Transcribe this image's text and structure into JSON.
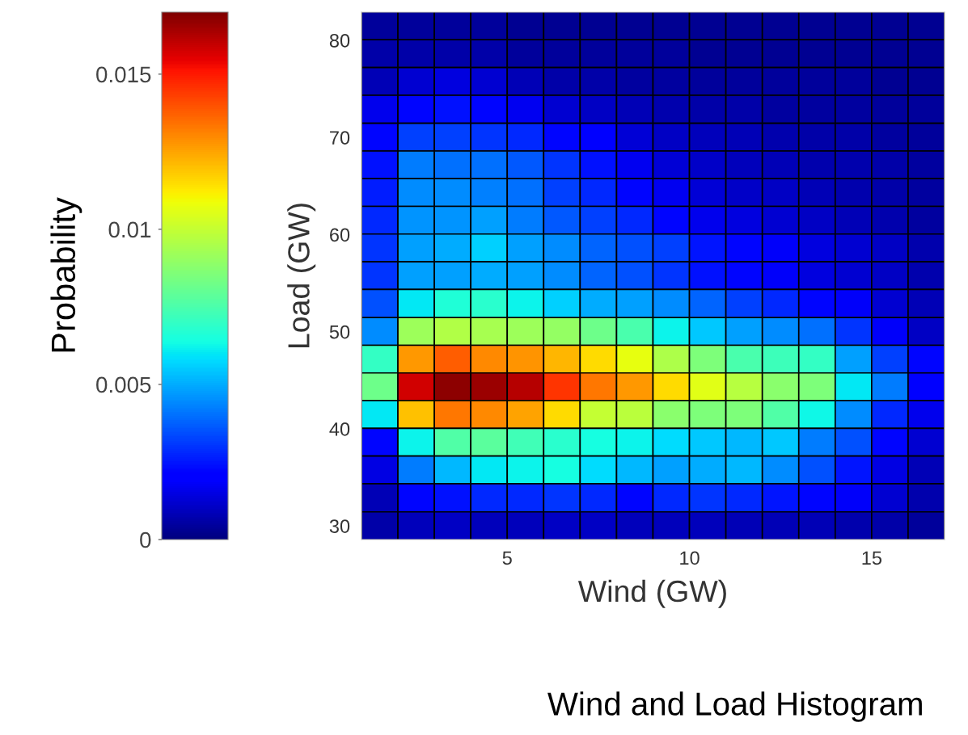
{
  "chart_data": {
    "type": "heatmap",
    "title": "Wind and Load Histogram",
    "xlabel": "Wind (GW)",
    "ylabel": "Load (GW)",
    "clabel": "Probability",
    "x": [
      1.5,
      2.5,
      3.5,
      4.5,
      5.5,
      6.5,
      7.5,
      8.5,
      9.5,
      10.5,
      11.5,
      12.5,
      13.5,
      14.5,
      15.5,
      16.5
    ],
    "y": [
      81.5,
      78.6,
      75.8,
      72.9,
      70.0,
      67.2,
      64.3,
      61.5,
      58.6,
      55.8,
      52.9,
      50.0,
      47.2,
      44.3,
      41.5,
      38.6,
      35.8,
      32.9,
      30.0
    ],
    "xlim": [
      1,
      17
    ],
    "ylim": [
      28.6,
      82.9
    ],
    "xticks": [
      5,
      10,
      15
    ],
    "yticks": [
      30,
      40,
      50,
      60,
      70,
      80
    ],
    "clim": [
      0,
      0.017
    ],
    "cticks": [
      0,
      0.005,
      0.01,
      0.015
    ],
    "cells": [
      [
        0.0004,
        0.0004,
        0.0004,
        0.0004,
        0.0003,
        0.0003,
        0.0003,
        0.0003,
        0.0003,
        0.0003,
        0.0003,
        0.0003,
        0.0003,
        0.0003,
        0.0003,
        0.0003
      ],
      [
        0.0006,
        0.0006,
        0.0006,
        0.0006,
        0.0004,
        0.0004,
        0.0004,
        0.0004,
        0.0004,
        0.0003,
        0.0003,
        0.0003,
        0.0003,
        0.0003,
        0.0003,
        0.0003
      ],
      [
        0.0008,
        0.0012,
        0.0014,
        0.0012,
        0.0008,
        0.0006,
        0.0006,
        0.0005,
        0.0005,
        0.0004,
        0.0004,
        0.0004,
        0.0004,
        0.0004,
        0.0003,
        0.0003
      ],
      [
        0.0016,
        0.0022,
        0.0024,
        0.0022,
        0.0017,
        0.0012,
        0.001,
        0.0008,
        0.0007,
        0.0006,
        0.0006,
        0.0005,
        0.0005,
        0.0005,
        0.0004,
        0.0004
      ],
      [
        0.0022,
        0.0032,
        0.0032,
        0.003,
        0.0028,
        0.0022,
        0.0019,
        0.0013,
        0.001,
        0.0009,
        0.0008,
        0.0007,
        0.0006,
        0.0006,
        0.0005,
        0.0004
      ],
      [
        0.0024,
        0.0042,
        0.004,
        0.004,
        0.0036,
        0.003,
        0.0024,
        0.0017,
        0.0013,
        0.0011,
        0.0009,
        0.0008,
        0.0007,
        0.0007,
        0.0006,
        0.0005
      ],
      [
        0.0026,
        0.0045,
        0.0045,
        0.0043,
        0.004,
        0.0032,
        0.0028,
        0.0022,
        0.0017,
        0.0013,
        0.0011,
        0.001,
        0.0008,
        0.0007,
        0.0006,
        0.0005
      ],
      [
        0.0028,
        0.0046,
        0.0046,
        0.0048,
        0.0042,
        0.0036,
        0.0032,
        0.0028,
        0.0022,
        0.0016,
        0.0014,
        0.0012,
        0.001,
        0.0008,
        0.0007,
        0.0005
      ],
      [
        0.003,
        0.0048,
        0.005,
        0.0056,
        0.0048,
        0.0045,
        0.0038,
        0.0035,
        0.0032,
        0.0025,
        0.0022,
        0.0018,
        0.0014,
        0.0012,
        0.001,
        0.0007
      ],
      [
        0.003,
        0.0048,
        0.0048,
        0.005,
        0.0048,
        0.0045,
        0.0038,
        0.0035,
        0.003,
        0.0024,
        0.0022,
        0.0018,
        0.0014,
        0.0012,
        0.001,
        0.0007
      ],
      [
        0.0035,
        0.006,
        0.0066,
        0.0068,
        0.0062,
        0.0056,
        0.005,
        0.0048,
        0.0045,
        0.0038,
        0.0032,
        0.0028,
        0.0022,
        0.0018,
        0.0012,
        0.0008
      ],
      [
        0.0045,
        0.0092,
        0.0096,
        0.0094,
        0.0092,
        0.009,
        0.0082,
        0.0075,
        0.0062,
        0.0055,
        0.0048,
        0.0045,
        0.004,
        0.003,
        0.0018,
        0.001
      ],
      [
        0.007,
        0.0127,
        0.0138,
        0.013,
        0.0128,
        0.0122,
        0.0115,
        0.0107,
        0.0095,
        0.0085,
        0.0075,
        0.0072,
        0.007,
        0.0048,
        0.0032,
        0.0022
      ],
      [
        0.0082,
        0.0158,
        0.0168,
        0.0166,
        0.0162,
        0.0145,
        0.0133,
        0.0127,
        0.0115,
        0.0106,
        0.0097,
        0.0088,
        0.0085,
        0.006,
        0.0042,
        0.002
      ],
      [
        0.006,
        0.012,
        0.0133,
        0.013,
        0.0125,
        0.0115,
        0.01,
        0.0098,
        0.0088,
        0.0085,
        0.0085,
        0.0076,
        0.0063,
        0.0045,
        0.0028,
        0.0016
      ],
      [
        0.0022,
        0.0062,
        0.0076,
        0.0078,
        0.0073,
        0.0068,
        0.0064,
        0.0062,
        0.0058,
        0.0055,
        0.0052,
        0.0055,
        0.0042,
        0.0035,
        0.0022,
        0.0012
      ],
      [
        0.0015,
        0.0042,
        0.0052,
        0.006,
        0.0062,
        0.0064,
        0.0058,
        0.0052,
        0.0048,
        0.005,
        0.0052,
        0.0045,
        0.0035,
        0.0025,
        0.0015,
        0.0008
      ],
      [
        0.0008,
        0.0022,
        0.0024,
        0.0028,
        0.0028,
        0.003,
        0.0028,
        0.0022,
        0.0028,
        0.003,
        0.0028,
        0.0025,
        0.0022,
        0.0018,
        0.0012,
        0.0007
      ],
      [
        0.0006,
        0.0009,
        0.001,
        0.0009,
        0.0009,
        0.001,
        0.001,
        0.0009,
        0.0009,
        0.0009,
        0.0008,
        0.0008,
        0.0008,
        0.0007,
        0.0006,
        0.0004
      ]
    ]
  }
}
